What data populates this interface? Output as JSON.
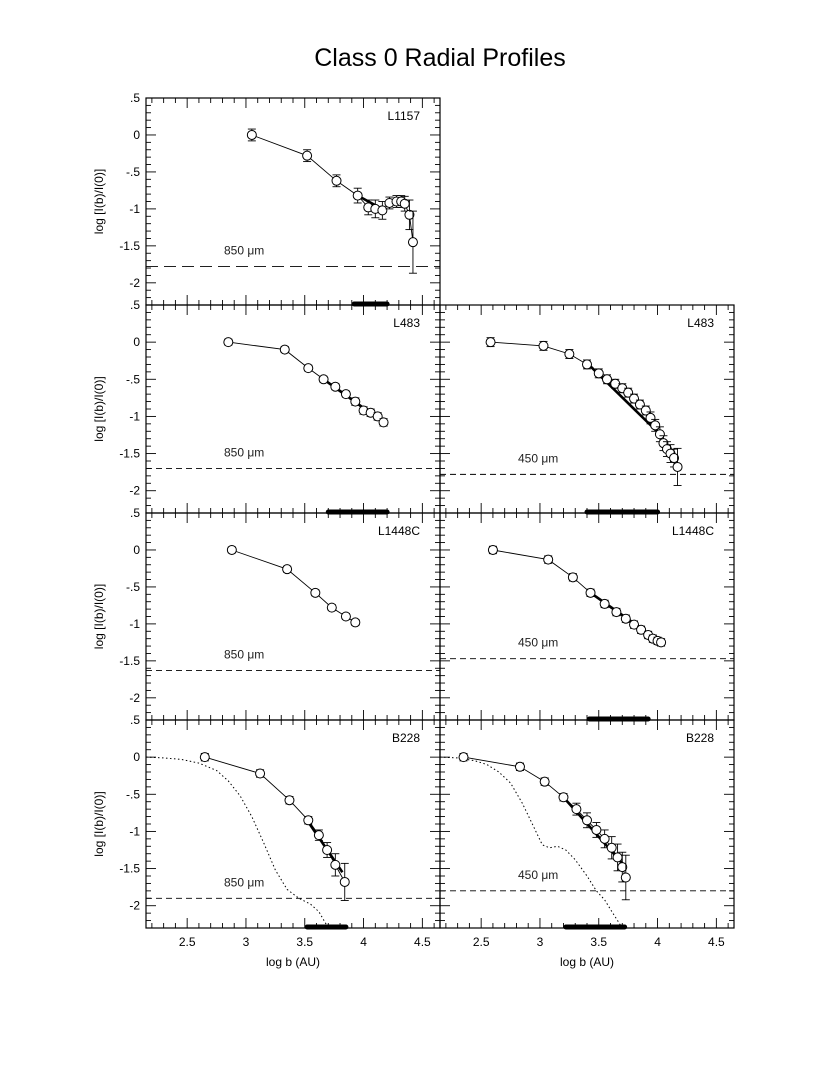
{
  "title": "Class 0 Radial Profiles",
  "xlabel": "log b (AU)",
  "ylabel": "log [I(b)/I(0)]",
  "x_ticks": [
    "2.5",
    "3",
    "3.5",
    "4",
    "4.5"
  ],
  "y_ticks": [
    ".5",
    "0",
    "-.5",
    "-1",
    "-1.5",
    "-2"
  ],
  "chart_data": [
    {
      "type": "line",
      "title": "L1157 850 μm",
      "source": "L1157",
      "wavelength": "850 μm",
      "xlim": [
        2.15,
        4.65
      ],
      "ylim": [
        -2.3,
        0.5
      ],
      "x": [
        3.05,
        3.52,
        3.77,
        3.95,
        4.04,
        4.1,
        4.16,
        4.22,
        4.28,
        4.32,
        4.35,
        4.39,
        4.42
      ],
      "y": [
        0.0,
        -0.28,
        -0.62,
        -0.82,
        -0.98,
        -1.0,
        -1.02,
        -0.92,
        -0.9,
        -0.9,
        -0.93,
        -1.08,
        -1.45
      ],
      "err": [
        0.08,
        0.08,
        0.08,
        0.1,
        0.1,
        0.12,
        0.12,
        0.08,
        0.08,
        0.08,
        0.1,
        0.2,
        0.42
      ],
      "fit_x": [
        3.95,
        4.18
      ],
      "fit_y": [
        -0.82,
        -1.02
      ],
      "fit_range": [
        3.92,
        4.2
      ],
      "noise_level": -1.78
    },
    {
      "type": "line",
      "title": "L483 850 μm",
      "source": "L483",
      "wavelength": "850 μm",
      "xlim": [
        2.15,
        4.65
      ],
      "ylim": [
        -2.3,
        0.5
      ],
      "x": [
        2.85,
        3.33,
        3.53,
        3.66,
        3.76,
        3.85,
        3.93,
        4.0,
        4.06,
        4.12,
        4.17
      ],
      "y": [
        0.0,
        -0.1,
        -0.35,
        -0.5,
        -0.6,
        -0.7,
        -0.8,
        -0.92,
        -0.95,
        -1.0,
        -1.08
      ],
      "err": [
        0.04,
        0.04,
        0.04,
        0.04,
        0.04,
        0.04,
        0.05,
        0.05,
        0.05,
        0.05,
        0.05
      ],
      "fit_x": [
        3.66,
        4.17
      ],
      "fit_y": [
        -0.5,
        -1.08
      ],
      "fit_range": [
        3.7,
        4.2
      ],
      "noise_level": -1.7
    },
    {
      "type": "line",
      "title": "L483 450 μm",
      "source": "L483",
      "wavelength": "450 μm",
      "xlim": [
        2.15,
        4.65
      ],
      "ylim": [
        -2.3,
        0.5
      ],
      "x": [
        2.58,
        3.03,
        3.25,
        3.4,
        3.5,
        3.57,
        3.64,
        3.7,
        3.75,
        3.8,
        3.85,
        3.9,
        3.94,
        3.98,
        4.02,
        4.05,
        4.08,
        4.11,
        4.14,
        4.17
      ],
      "y": [
        0.0,
        -0.05,
        -0.16,
        -0.3,
        -0.42,
        -0.5,
        -0.56,
        -0.62,
        -0.68,
        -0.76,
        -0.84,
        -0.92,
        -1.02,
        -1.12,
        -1.24,
        -1.36,
        -1.44,
        -1.5,
        -1.56,
        -1.68
      ],
      "err": [
        0.06,
        0.06,
        0.06,
        0.06,
        0.06,
        0.06,
        0.06,
        0.06,
        0.06,
        0.06,
        0.06,
        0.06,
        0.08,
        0.08,
        0.1,
        0.1,
        0.1,
        0.12,
        0.12,
        0.25
      ],
      "fit_x": [
        3.4,
        4.02
      ],
      "fit_y": [
        -0.28,
        -1.24
      ],
      "fit_range": [
        3.4,
        4.0
      ],
      "noise_level": -1.78
    },
    {
      "type": "line",
      "title": "L1448C 850 μm",
      "source": "L1448C",
      "wavelength": "850 μm",
      "xlim": [
        2.15,
        4.65
      ],
      "ylim": [
        -2.3,
        0.5
      ],
      "x": [
        2.88,
        3.35,
        3.59,
        3.73,
        3.85,
        3.93
      ],
      "y": [
        0.0,
        -0.26,
        -0.58,
        -0.78,
        -0.9,
        -0.98
      ],
      "err": [
        0.04,
        0.04,
        0.04,
        0.04,
        0.04,
        0.04
      ],
      "fit_x": [],
      "fit_y": [],
      "fit_range": null,
      "noise_level": -1.63
    },
    {
      "type": "line",
      "title": "L1448C 450 μm",
      "source": "L1448C",
      "wavelength": "450 μm",
      "xlim": [
        2.15,
        4.65
      ],
      "ylim": [
        -2.3,
        0.5
      ],
      "x": [
        2.6,
        3.07,
        3.28,
        3.43,
        3.55,
        3.65,
        3.73,
        3.8,
        3.86,
        3.92,
        3.96,
        4.0,
        4.03
      ],
      "y": [
        0.0,
        -0.13,
        -0.37,
        -0.58,
        -0.73,
        -0.84,
        -0.93,
        -1.01,
        -1.08,
        -1.15,
        -1.2,
        -1.23,
        -1.25
      ],
      "err": [
        0.05,
        0.05,
        0.05,
        0.05,
        0.05,
        0.05,
        0.05,
        0.05,
        0.05,
        0.05,
        0.05,
        0.05,
        0.05
      ],
      "fit_x": [
        3.43,
        4.03
      ],
      "fit_y": [
        -0.58,
        -1.25
      ],
      "fit_range": [
        3.42,
        3.92
      ],
      "noise_level": -1.47
    },
    {
      "type": "line",
      "title": "B228 850 μm",
      "source": "B228",
      "wavelength": "850 μm",
      "xlim": [
        2.15,
        4.65
      ],
      "ylim": [
        -2.3,
        0.5
      ],
      "x": [
        2.65,
        3.12,
        3.37,
        3.53,
        3.62,
        3.69,
        3.76,
        3.84
      ],
      "y": [
        0.0,
        -0.22,
        -0.58,
        -0.85,
        -1.05,
        -1.25,
        -1.45,
        -1.68
      ],
      "err": [
        0.05,
        0.05,
        0.05,
        0.05,
        0.07,
        0.1,
        0.15,
        0.25
      ],
      "fit_x": [
        3.52,
        3.82
      ],
      "fit_y": [
        -0.85,
        -1.55
      ],
      "fit_range": [
        3.52,
        3.85
      ],
      "noise_level": -1.9,
      "beam_x": [
        2.15,
        2.3,
        2.45,
        2.6,
        2.75,
        2.85,
        2.95,
        3.05,
        3.15,
        3.25,
        3.35,
        3.45,
        3.55,
        3.62,
        3.7,
        3.78
      ],
      "beam_y": [
        0.0,
        -0.01,
        -0.03,
        -0.08,
        -0.18,
        -0.32,
        -0.52,
        -0.8,
        -1.15,
        -1.52,
        -1.78,
        -1.9,
        -1.98,
        -2.08,
        -2.3,
        -2.5
      ]
    },
    {
      "type": "line",
      "title": "B228 450 μm",
      "source": "B228",
      "wavelength": "450 μm",
      "xlim": [
        2.15,
        4.65
      ],
      "ylim": [
        -2.3,
        0.5
      ],
      "x": [
        2.35,
        2.83,
        3.04,
        3.2,
        3.31,
        3.4,
        3.48,
        3.55,
        3.61,
        3.66,
        3.7,
        3.73
      ],
      "y": [
        0.0,
        -0.13,
        -0.33,
        -0.54,
        -0.7,
        -0.85,
        -0.98,
        -1.1,
        -1.22,
        -1.35,
        -1.48,
        -1.62
      ],
      "err": [
        0.05,
        0.05,
        0.05,
        0.05,
        0.08,
        0.1,
        0.1,
        0.12,
        0.15,
        0.18,
        0.2,
        0.3
      ],
      "fit_x": [
        3.2,
        3.73
      ],
      "fit_y": [
        -0.54,
        -1.48
      ],
      "fit_range": [
        3.22,
        3.72
      ],
      "noise_level": -1.8,
      "beam_x": [
        2.15,
        2.3,
        2.45,
        2.55,
        2.65,
        2.75,
        2.85,
        2.95,
        3.02,
        3.08,
        3.15,
        3.22,
        3.3,
        3.4,
        3.48,
        3.55,
        3.6,
        3.66,
        3.72
      ],
      "beam_y": [
        0.0,
        -0.01,
        -0.05,
        -0.1,
        -0.2,
        -0.35,
        -0.62,
        -0.95,
        -1.18,
        -1.22,
        -1.2,
        -1.25,
        -1.38,
        -1.6,
        -1.8,
        -1.92,
        -2.05,
        -2.2,
        -2.35
      ]
    }
  ],
  "panel_labels": {
    "p0": {
      "source": "L1157",
      "wavelength": "850 μm"
    },
    "p1": {
      "source": "L483",
      "wavelength": "850 μm"
    },
    "p2": {
      "source": "L483",
      "wavelength": "450 μm"
    },
    "p3": {
      "source": "L1448C",
      "wavelength": "850 μm"
    },
    "p4": {
      "source": "L1448C",
      "wavelength": "450 μm"
    },
    "p5": {
      "source": "B228",
      "wavelength": "850 μm"
    },
    "p6": {
      "source": "B228",
      "wavelength": "450 μm"
    }
  }
}
